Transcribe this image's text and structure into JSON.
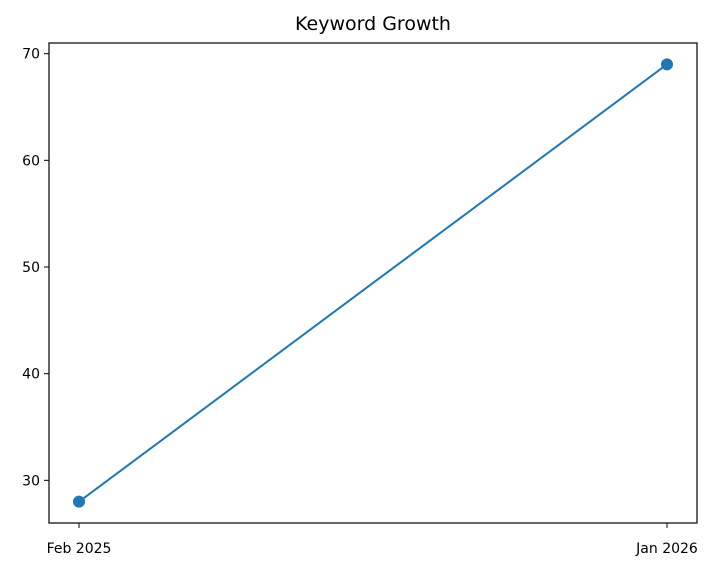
{
  "colors": {
    "series": "#1f77b4",
    "axis": "#000000",
    "background": "#ffffff"
  },
  "chart_data": {
    "type": "line",
    "title": "Keyword Growth",
    "xlabel": "",
    "ylabel": "",
    "x": [
      "Feb 2025",
      "Jan 2026"
    ],
    "x_tick_labels": [
      "Feb 2025",
      "Jan 2026"
    ],
    "series": [
      {
        "values": [
          28,
          69
        ],
        "marker": "circle"
      }
    ],
    "ylim": [
      26,
      71
    ],
    "y_ticks": [
      30,
      40,
      50,
      60,
      70
    ],
    "grid": false,
    "legend": "none"
  }
}
